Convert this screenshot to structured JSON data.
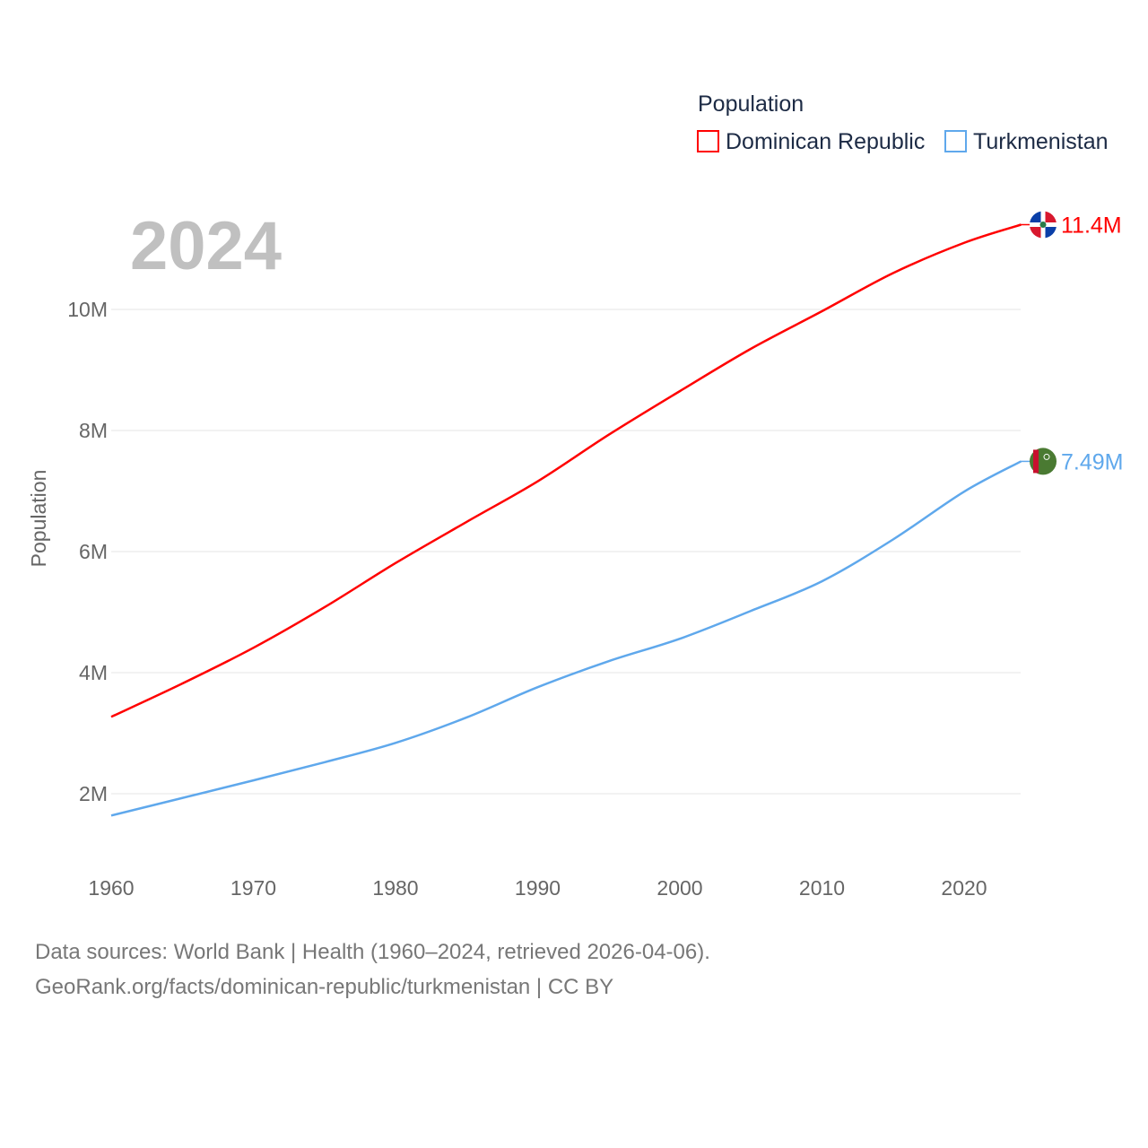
{
  "chart_data": {
    "type": "line",
    "title": "",
    "year_label": "2024",
    "xlabel": "",
    "ylabel": "Population",
    "xlim": [
      1960,
      2024
    ],
    "ylim": [
      0,
      11.5
    ],
    "x_ticks": [
      "1960",
      "1970",
      "1980",
      "1990",
      "2000",
      "2010",
      "2020"
    ],
    "y_ticks": [
      {
        "v": 2,
        "label": "2M"
      },
      {
        "v": 4,
        "label": "4M"
      },
      {
        "v": 6,
        "label": "6M"
      },
      {
        "v": 8,
        "label": "8M"
      },
      {
        "v": 10,
        "label": "10M"
      }
    ],
    "legend": {
      "title": "Population",
      "placement": "top-right"
    },
    "x": [
      1960,
      1965,
      1970,
      1975,
      1980,
      1985,
      1990,
      1995,
      2000,
      2005,
      2010,
      2015,
      2020,
      2024
    ],
    "series": [
      {
        "name": "Dominican Republic",
        "color": "#ff0000",
        "end_label": "11.4M",
        "flag": "dominican-republic-flag",
        "values": [
          3.27,
          3.82,
          4.41,
          5.08,
          5.81,
          6.49,
          7.16,
          7.93,
          8.65,
          9.35,
          9.97,
          10.6,
          11.1,
          11.4
        ]
      },
      {
        "name": "Turkmenistan",
        "color": "#5fa8ec",
        "end_label": "7.49M",
        "flag": "turkmenistan-flag",
        "values": [
          1.64,
          1.93,
          2.22,
          2.52,
          2.84,
          3.26,
          3.76,
          4.19,
          4.56,
          5.02,
          5.51,
          6.2,
          6.99,
          7.49
        ]
      }
    ]
  },
  "footer": {
    "line1": "Data sources: World Bank | Health (1960–2024, retrieved 2026-04-06).",
    "line2": "GeoRank.org/facts/dominican-republic/turkmenistan | CC BY"
  }
}
